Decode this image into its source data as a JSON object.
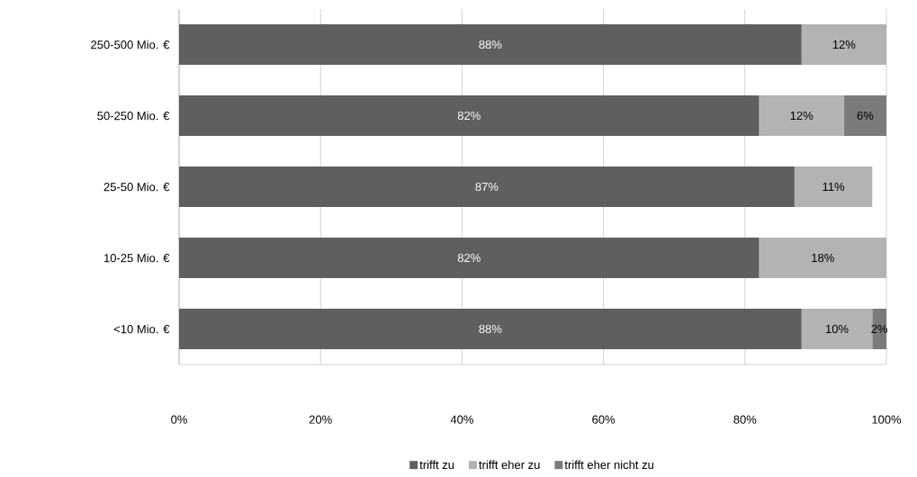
{
  "chart_data": {
    "type": "bar",
    "orientation": "horizontal",
    "stacked": true,
    "categories": [
      "250-500 Mio. €",
      "50-250 Mio. €",
      "25-50 Mio. €",
      "10-25 Mio. €",
      "<10 Mio. €"
    ],
    "series": [
      {
        "name": "trifft zu",
        "color": "#5f5f5f",
        "values": [
          88,
          82,
          87,
          82,
          88
        ],
        "value_labels": [
          "88%",
          "82%",
          "87%",
          "82%",
          "88%"
        ]
      },
      {
        "name": "trifft eher zu",
        "color": "#b3b3b3",
        "values": [
          12,
          12,
          11,
          18,
          10
        ],
        "value_labels": [
          "12%",
          "12%",
          "11%",
          "18%",
          "10%"
        ]
      },
      {
        "name": "trifft eher nicht zu",
        "color": "#7b7b7b",
        "values": [
          null,
          6,
          null,
          null,
          2
        ],
        "value_labels": [
          null,
          "6%",
          null,
          null,
          "2%"
        ]
      }
    ],
    "xlim": [
      0,
      100
    ],
    "xticks": [
      {
        "value": 0,
        "label": "0%"
      },
      {
        "value": 20,
        "label": "20%"
      },
      {
        "value": 40,
        "label": "40%"
      },
      {
        "value": 60,
        "label": "60%"
      },
      {
        "value": 80,
        "label": "80%"
      },
      {
        "value": 100,
        "label": "100%"
      }
    ],
    "grid": "x",
    "legend": "bottom"
  }
}
